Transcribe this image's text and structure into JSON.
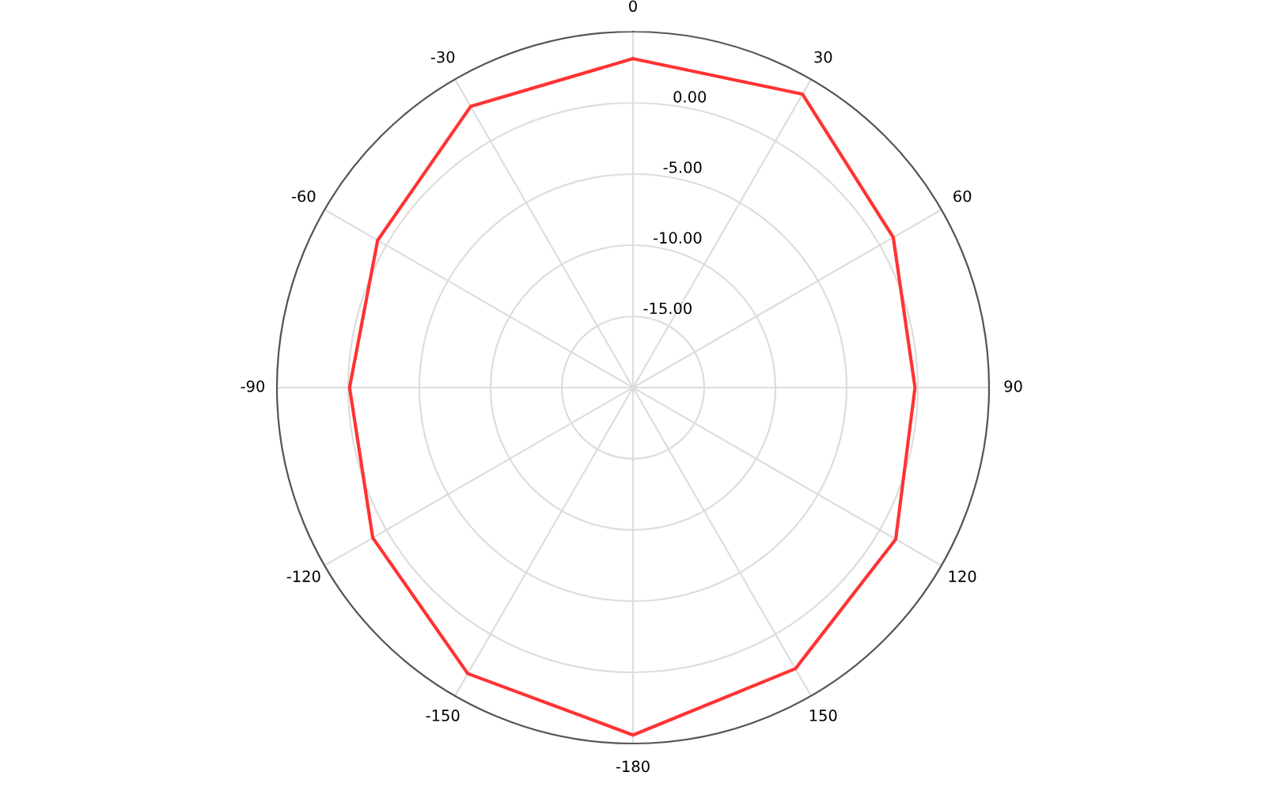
{
  "chart_data": {
    "type": "radar",
    "categories": [
      "0",
      "30",
      "60",
      "90",
      "120",
      "150",
      "-180",
      "-150",
      "-120",
      "-90",
      "-60",
      "-30"
    ],
    "series": [
      {
        "color": "#ff3333",
        "values": [
          3.1,
          3.8,
          1.1,
          -0.2,
          1.3,
          2.8,
          4.4,
          3.2,
          1.1,
          -0.1,
          0.7,
          2.8
        ]
      }
    ],
    "ylim": [
      -20,
      5
    ],
    "yticks": [
      {
        "value": -15,
        "label": "-15.00"
      },
      {
        "value": -10,
        "label": "-10.00"
      },
      {
        "value": -5,
        "label": "-5.00"
      },
      {
        "value": 0,
        "label": "0.00"
      }
    ],
    "grid": true
  }
}
